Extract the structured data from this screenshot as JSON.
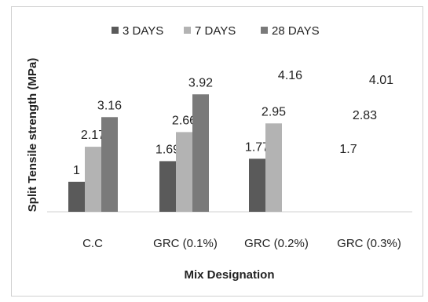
{
  "chart_data": {
    "type": "bar",
    "title": "",
    "xlabel": "Mix Designation",
    "ylabel": "Split Tensile strength (MPa)",
    "categories": [
      "C.C",
      "GRC (0.1%)",
      "GRC (0.2%)",
      "GRC (0.3%)"
    ],
    "ylim": [
      0,
      4.5
    ],
    "grid": false,
    "legend_position": "top",
    "series": [
      {
        "name": "3 DAYS",
        "color": "#5a5a5a",
        "values": [
          1,
          1.69,
          1.77,
          1.7
        ],
        "labels": [
          "1",
          "1.69",
          "1.77",
          "1.7"
        ],
        "bars_drawn": [
          true,
          true,
          true,
          false
        ]
      },
      {
        "name": "7 DAYS",
        "color": "#b3b3b3",
        "values": [
          2.17,
          2.66,
          2.95,
          2.83
        ],
        "labels": [
          "2.17",
          "2.66",
          "2.95",
          "2.83"
        ],
        "bars_drawn": [
          true,
          true,
          true,
          false
        ]
      },
      {
        "name": "28 DAYS",
        "color": "#7a7a7a",
        "values": [
          3.16,
          3.92,
          4.16,
          4.01
        ],
        "labels": [
          "3.16",
          "3.92",
          "4.16",
          "4.01"
        ],
        "bars_drawn": [
          true,
          true,
          false,
          false
        ]
      }
    ]
  }
}
